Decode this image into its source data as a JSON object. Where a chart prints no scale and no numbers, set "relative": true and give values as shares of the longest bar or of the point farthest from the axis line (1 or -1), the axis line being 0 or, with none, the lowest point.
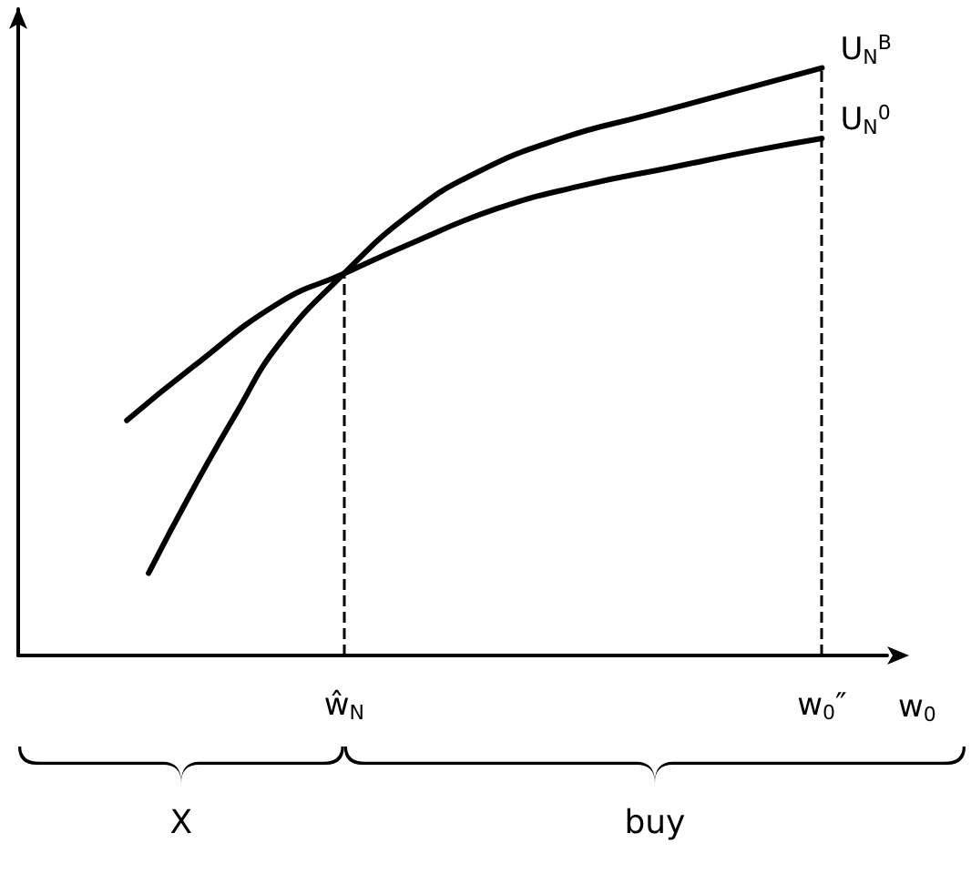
{
  "chart_data": {
    "type": "line",
    "relative": true,
    "categories": [
      null,
      null,
      null,
      null,
      null,
      null,
      null,
      null,
      null,
      null,
      null,
      null,
      null,
      null,
      null,
      "ŵ$_{N}$",
      null,
      null,
      null,
      null,
      null,
      null,
      null,
      null,
      null,
      null,
      null,
      null,
      null,
      null,
      null,
      null,
      null,
      null,
      null,
      null,
      null,
      "w$_{0}$″",
      null,
      null,
      null
    ],
    "xlabel": "w$_{0}$",
    "series": [
      {
        "name": "U$_{N}$$^{B}$",
        "color": "#000000",
        "values": [
          null,
          null,
          null,
          null,
          null,
          null,
          0.14,
          null,
          0.28,
          null,
          0.41,
          null,
          0.53,
          null,
          null,
          0.65,
          null,
          null,
          0.75,
          null,
          null,
          0.82,
          null,
          null,
          null,
          0.88,
          null,
          null,
          null,
          0.92,
          null,
          null,
          null,
          0.96,
          null,
          null,
          null,
          1.0,
          null,
          null,
          null
        ]
      },
      {
        "name": "U$_{N}$$^{0}$",
        "color": "#000000",
        "values": [
          null,
          null,
          null,
          null,
          null,
          0.4,
          null,
          null,
          0.49,
          null,
          null,
          null,
          0.6,
          null,
          null,
          0.65,
          null,
          null,
          0.7,
          null,
          null,
          null,
          0.76,
          null,
          null,
          null,
          0.8,
          null,
          null,
          null,
          0.83,
          null,
          null,
          null,
          0.86,
          null,
          null,
          0.88,
          null,
          null,
          null
        ]
      }
    ],
    "ref_lines": [
      {
        "axis": "x",
        "value": "ŵ$_{N}$",
        "line_style": "dashed"
      },
      {
        "axis": "x",
        "value": "w$_{0}$″",
        "line_style": "dashed"
      }
    ],
    "annotations": [
      "X",
      "buy"
    ],
    "marker": "none",
    "line_style": "solid",
    "grid": false,
    "legend": false
  }
}
